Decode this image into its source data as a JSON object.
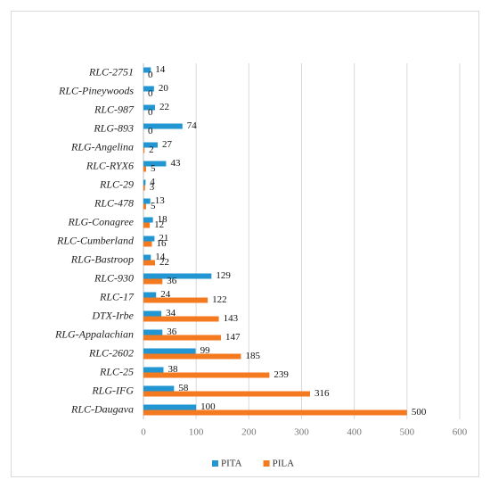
{
  "chart_data": {
    "type": "hbar",
    "categories": [
      "RLC-2751",
      "RLC-Pineywoods",
      "RLC-987",
      "RLG-893",
      "RLG-Angelina",
      "RLC-RYX6",
      "RLC-29",
      "RLC-478",
      "RLG-Conagree",
      "RLC-Cumberland",
      "RLG-Bastroop",
      "RLC-930",
      "RLC-17",
      "DTX-Irbe",
      "RLG-Appalachian",
      "RLC-2602",
      "RLC-25",
      "RLG-IFG",
      "RLC-Daugava"
    ],
    "series": [
      {
        "name": "PITA",
        "color": "#2196d3",
        "values": [
          14,
          20,
          22,
          74,
          27,
          43,
          4,
          13,
          18,
          21,
          14,
          129,
          24,
          34,
          36,
          99,
          38,
          58,
          100
        ]
      },
      {
        "name": "PILA",
        "color": "#f47a20",
        "values": [
          0,
          0,
          0,
          0,
          2,
          5,
          3,
          5,
          12,
          16,
          22,
          36,
          122,
          143,
          147,
          185,
          239,
          316,
          500
        ]
      }
    ],
    "xlim": [
      0,
      600
    ],
    "xticks": [
      0,
      100,
      200,
      300,
      400,
      500,
      600
    ],
    "grid": true,
    "legend": "bottom"
  }
}
